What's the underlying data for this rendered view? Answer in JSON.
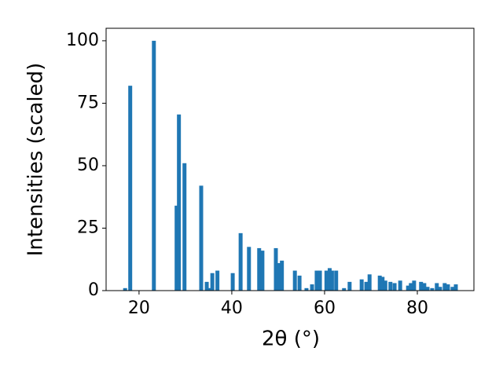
{
  "chart_data": {
    "type": "bar",
    "x_label": "2θ (°)",
    "y_label": "Intensities (scaled)",
    "x": [
      17.0,
      18.1,
      23.2,
      28.1,
      28.6,
      29.8,
      33.4,
      34.6,
      35.1,
      35.8,
      36.9,
      40.2,
      41.9,
      43.7,
      45.9,
      46.6,
      49.5,
      50.2,
      50.8,
      53.6,
      54.6,
      56.1,
      57.3,
      58.3,
      59.0,
      60.4,
      61.1,
      61.6,
      62.5,
      64.2,
      65.4,
      68.0,
      69.0,
      69.7,
      71.9,
      72.5,
      73.1,
      74.2,
      75.1,
      76.3,
      78.0,
      78.6,
      79.3,
      80.8,
      81.5,
      82.2,
      83.2,
      84.2,
      84.9,
      85.9,
      86.6,
      87.6,
      88.3
    ],
    "values": [
      1,
      82,
      100,
      34,
      70.5,
      51,
      42,
      3.5,
      1,
      7,
      8,
      7,
      23,
      17.5,
      17,
      16,
      17,
      11,
      12,
      8,
      6,
      1,
      2.5,
      8,
      8,
      8,
      9,
      8,
      8,
      1,
      3.5,
      4.5,
      3.5,
      6.5,
      6,
      5.5,
      4,
      3.5,
      3,
      4,
      2,
      3,
      4,
      3.5,
      3,
      1.5,
      1,
      3,
      1.5,
      3,
      2.5,
      1.5,
      2.5
    ],
    "color": "#1f77b4",
    "xlim": [
      12.9,
      92.2
    ],
    "xticks": [
      20,
      40,
      60,
      80
    ],
    "ylim": [
      0,
      105
    ],
    "yticks": [
      0,
      25,
      50,
      75,
      100
    ]
  }
}
